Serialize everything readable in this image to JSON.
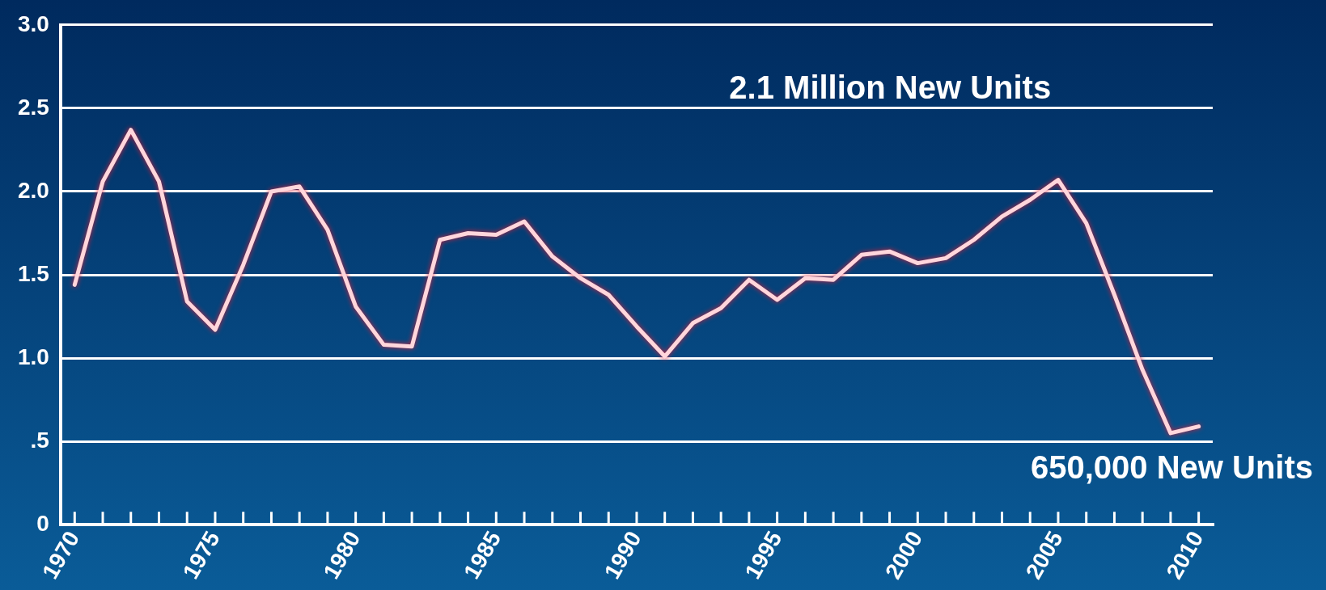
{
  "chart_data": {
    "type": "line",
    "x": [
      1970,
      1971,
      1972,
      1973,
      1974,
      1975,
      1976,
      1977,
      1978,
      1979,
      1980,
      1981,
      1982,
      1983,
      1984,
      1985,
      1986,
      1987,
      1988,
      1989,
      1990,
      1991,
      1992,
      1993,
      1994,
      1995,
      1996,
      1997,
      1998,
      1999,
      2000,
      2001,
      2002,
      2003,
      2004,
      2005,
      2006,
      2007,
      2008,
      2009,
      2010
    ],
    "series": [
      {
        "color": "#ffd6dc",
        "values": [
          1.44,
          2.06,
          2.37,
          2.06,
          1.34,
          1.17,
          1.56,
          2.0,
          2.03,
          1.77,
          1.31,
          1.08,
          1.07,
          1.71,
          1.75,
          1.74,
          1.82,
          1.61,
          1.48,
          1.38,
          1.19,
          1.01,
          1.21,
          1.3,
          1.47,
          1.35,
          1.48,
          1.47,
          1.62,
          1.64,
          1.57,
          1.6,
          1.71,
          1.85,
          1.95,
          2.07,
          1.81,
          1.38,
          0.93,
          0.55,
          0.59
        ]
      }
    ],
    "xlim": [
      1969.5,
      2010.5
    ],
    "xticks": [
      1970,
      {
        "value": 1971,
        "label": null
      },
      {
        "value": 1972,
        "label": null
      },
      {
        "value": 1973,
        "label": null
      },
      {
        "value": 1974,
        "label": null
      },
      1975,
      {
        "value": 1976,
        "label": null
      },
      {
        "value": 1977,
        "label": null
      },
      {
        "value": 1978,
        "label": null
      },
      {
        "value": 1979,
        "label": null
      },
      1980,
      {
        "value": 1981,
        "label": null
      },
      {
        "value": 1982,
        "label": null
      },
      {
        "value": 1983,
        "label": null
      },
      {
        "value": 1984,
        "label": null
      },
      1985,
      {
        "value": 1986,
        "label": null
      },
      {
        "value": 1987,
        "label": null
      },
      {
        "value": 1988,
        "label": null
      },
      {
        "value": 1989,
        "label": null
      },
      1990,
      {
        "value": 1991,
        "label": null
      },
      {
        "value": 1992,
        "label": null
      },
      {
        "value": 1993,
        "label": null
      },
      {
        "value": 1994,
        "label": null
      },
      1995,
      {
        "value": 1996,
        "label": null
      },
      {
        "value": 1997,
        "label": null
      },
      {
        "value": 1998,
        "label": null
      },
      {
        "value": 1999,
        "label": null
      },
      2000,
      {
        "value": 2001,
        "label": null
      },
      {
        "value": 2002,
        "label": null
      },
      {
        "value": 2003,
        "label": null
      },
      {
        "value": 2004,
        "label": null
      },
      2005,
      {
        "value": 2006,
        "label": null
      },
      {
        "value": 2007,
        "label": null
      },
      {
        "value": 2008,
        "label": null
      },
      {
        "value": 2009,
        "label": null
      },
      2010
    ],
    "ylim": [
      0,
      3
    ],
    "yticks": [
      {
        "value": 0,
        "label": "0"
      },
      {
        "value": 0.5,
        "label": ".5"
      },
      {
        "value": 1,
        "label": "1.0"
      },
      {
        "value": 1.5,
        "label": "1.5"
      },
      {
        "value": 2,
        "label": "2.0"
      },
      {
        "value": 2.5,
        "label": "2.5"
      },
      {
        "value": 3,
        "label": "3.0"
      }
    ],
    "grid": "y",
    "legend": false,
    "marker": "none",
    "line_style": "solid",
    "annotations": [
      "2.1 Million New Units",
      "650,000 New Units"
    ]
  }
}
